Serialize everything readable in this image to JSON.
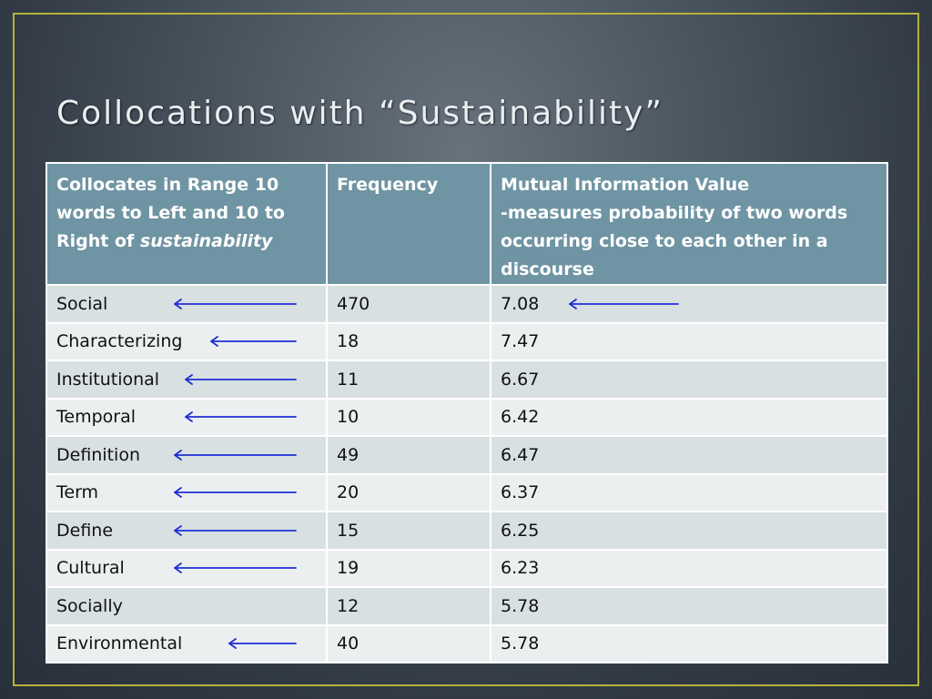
{
  "title": "Collocations with “Sustainability”",
  "headers": {
    "col1_prefix": "Collocates in Range 10 words to Left and 10 to Right of ",
    "col1_italic": "sustainability",
    "col2": "Frequency",
    "col3_line1": "Mutual Information Value",
    "col3_line2": "-measures probability of two words occurring close to each other in a discourse"
  },
  "rows": [
    {
      "word": "Social",
      "frequency": "470",
      "mi": "7.08",
      "word_arrow": true,
      "mi_arrow": true
    },
    {
      "word": "Characterizing",
      "frequency": "18",
      "mi": "7.47",
      "word_arrow": true,
      "mi_arrow": false
    },
    {
      "word": "Institutional",
      "frequency": "11",
      "mi": "6.67",
      "word_arrow": true,
      "mi_arrow": false
    },
    {
      "word": "Temporal",
      "frequency": "10",
      "mi": "6.42",
      "word_arrow": true,
      "mi_arrow": false
    },
    {
      "word": "Definition",
      "frequency": "49",
      "mi": "6.47",
      "word_arrow": true,
      "mi_arrow": false
    },
    {
      "word": "Term",
      "frequency": "20",
      "mi": "6.37",
      "word_arrow": true,
      "mi_arrow": false
    },
    {
      "word": "Define",
      "frequency": "15",
      "mi": "6.25",
      "word_arrow": true,
      "mi_arrow": false
    },
    {
      "word": "Cultural",
      "frequency": "19",
      "mi": "6.23",
      "word_arrow": true,
      "mi_arrow": false
    },
    {
      "word": "Socially",
      "frequency": "12",
      "mi": "5.78",
      "word_arrow": false,
      "mi_arrow": false
    },
    {
      "word": "Environmental",
      "frequency": "40",
      "mi": "5.78",
      "word_arrow": true,
      "mi_arrow": false
    }
  ],
  "colors": {
    "header_bg": "#6f94a3",
    "row_odd": "#d8e0e2",
    "row_even": "#eceff0",
    "frame": "#b7b23a",
    "arrow": "#1f2fd6"
  }
}
